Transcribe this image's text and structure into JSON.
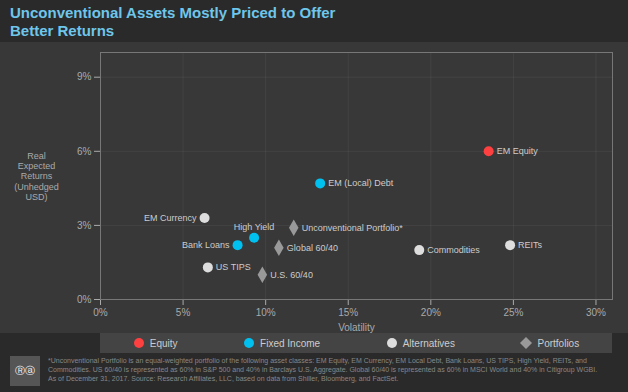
{
  "chart_data": {
    "type": "scatter",
    "title": "Unconventional Assets Mostly Priced to Offer\nBetter Returns",
    "xlabel": "Volatility",
    "ylabel": "Real\nExpected\nReturns\n(Unhedged\nUSD)",
    "xlim": [
      0,
      0.31
    ],
    "ylim": [
      0,
      0.1
    ],
    "xticks": [
      {
        "value": 0,
        "label": "0%"
      },
      {
        "value": 0.05,
        "label": "5%"
      },
      {
        "value": 0.1,
        "label": "10%"
      },
      {
        "value": 0.15,
        "label": "15%"
      },
      {
        "value": 0.2,
        "label": "20%"
      },
      {
        "value": 0.25,
        "label": "25%"
      },
      {
        "value": 0.3,
        "label": "30%"
      }
    ],
    "yticks": [
      {
        "value": 0,
        "label": "0%"
      },
      {
        "value": 0.03,
        "label": "3%"
      },
      {
        "value": 0.06,
        "label": "6%"
      },
      {
        "value": 0.09,
        "label": "9%"
      }
    ],
    "grid": true,
    "legend": "bottom",
    "series": [
      {
        "name": "Equity",
        "color": "#ff4040",
        "marker": "circle",
        "x": [
          0.235
        ],
        "values": [
          0.06
        ],
        "labels": [
          "EM Equity"
        ]
      },
      {
        "name": "Fixed Income",
        "color": "#00c0f0",
        "marker": "circle",
        "x": [
          0.133,
          0.083,
          0.093
        ],
        "values": [
          0.047,
          0.022,
          0.025
        ],
        "labels": [
          "EM (Local) Debt",
          "Bank Loans",
          "High Yield"
        ]
      },
      {
        "name": "Alternatives",
        "color": "#dddddd",
        "marker": "circle",
        "x": [
          0.063,
          0.065,
          0.193,
          0.248
        ],
        "values": [
          0.033,
          0.013,
          0.02,
          0.022
        ],
        "labels": [
          "EM Currency",
          "US TIPS",
          "Commodities",
          "REITs"
        ]
      },
      {
        "name": "Portfolios",
        "color": "#999999",
        "marker": "diamond",
        "x": [
          0.117,
          0.108,
          0.098
        ],
        "values": [
          0.029,
          0.021,
          0.01
        ],
        "labels": [
          "Unconventional Portfolio*",
          "Global 60/40",
          "U.S. 60/40"
        ]
      }
    ],
    "caption": "*Unconventional Portfolio is an equal-weighted portfolio of the following asset classes: EM Equity, EM Currency, EM Local Debt, Bank Loans, US TIPS, High Yield, REITs, and\nCommodities. US 60/40 is represented as 60% in S&P 500 and 40% in Barclays U.S. Aggregate. Global 60/40 is represented as 60% in MSCI World and 40% in Citigroup WGBI.\nAs of December 31, 2017. Source: Research Affiliates, LLC, based on data from Shiller, Bloomberg, and FactSet.",
    "annotations": [
      "Ⓡⓐ"
    ]
  }
}
